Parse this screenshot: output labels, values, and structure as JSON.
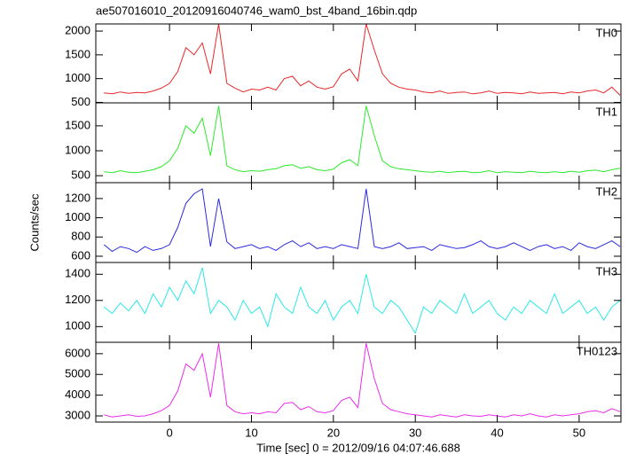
{
  "chart_data": {
    "type": "line",
    "title": "ae507016010_20120916040746_wam0_bst_4band_16bin.qdp",
    "x_label": "Time [sec] 0 = 2012/09/16 04:07:46.688",
    "y_label": "Counts/sec",
    "x": [
      -8,
      -7,
      -6,
      -5,
      -4,
      -3,
      -2,
      -1,
      0,
      1,
      2,
      3,
      4,
      5,
      6,
      7,
      8,
      9,
      10,
      11,
      12,
      13,
      14,
      15,
      16,
      17,
      18,
      19,
      20,
      21,
      22,
      23,
      24,
      25,
      26,
      27,
      28,
      29,
      30,
      31,
      32,
      33,
      34,
      35,
      36,
      37,
      38,
      39,
      40,
      41,
      42,
      43,
      44,
      45,
      46,
      47,
      48,
      49,
      50,
      51,
      52,
      53,
      54,
      55
    ],
    "xlim": [
      -9,
      55.1
    ],
    "xticks": [
      0,
      10,
      20,
      30,
      40,
      50
    ],
    "panels": [
      {
        "ylim": [
          490,
          2150
        ],
        "yticks": [
          500,
          1000,
          1500,
          2000
        ],
        "series": [
          {
            "name": "TH0",
            "color": "#e8282a",
            "values": [
              700,
              680,
              720,
              690,
              710,
              700,
              740,
              800,
              900,
              1150,
              1650,
              1500,
              1750,
              1100,
              2150,
              900,
              800,
              720,
              780,
              760,
              820,
              760,
              1000,
              1050,
              850,
              950,
              820,
              780,
              830,
              1100,
              1200,
              950,
              2150,
              1600,
              1100,
              900,
              820,
              780,
              760,
              720,
              700,
              740,
              690,
              710,
              720,
              680,
              700,
              740,
              690,
              710,
              700,
              680,
              720,
              690,
              700,
              710,
              680,
              720,
              700,
              740,
              760,
              700,
              820,
              650
            ]
          }
        ]
      },
      {
        "ylim": [
          360,
          1960
        ],
        "yticks": [
          500,
          1000,
          1500
        ],
        "series": [
          {
            "name": "TH1",
            "color": "#2ee82e",
            "values": [
              580,
              560,
              600,
              570,
              560,
              590,
              620,
              680,
              800,
              1050,
              1500,
              1350,
              1650,
              900,
              1900,
              700,
              620,
              580,
              600,
              590,
              620,
              640,
              700,
              720,
              650,
              680,
              620,
              600,
              630,
              760,
              820,
              700,
              1900,
              1300,
              800,
              680,
              640,
              620,
              600,
              580,
              570,
              590,
              560,
              580,
              590,
              560,
              570,
              600,
              560,
              580,
              570,
              560,
              590,
              570,
              560,
              580,
              560,
              590,
              570,
              600,
              610,
              580,
              620,
              650
            ]
          }
        ]
      },
      {
        "ylim": [
          535,
          1365
        ],
        "yticks": [
          600,
          800,
          1000,
          1200
        ],
        "series": [
          {
            "name": "TH2",
            "color": "#2a2ae0",
            "values": [
              720,
              650,
              700,
              680,
              640,
              700,
              660,
              680,
              720,
              900,
              1150,
              1250,
              1300,
              700,
              1200,
              750,
              680,
              700,
              720,
              680,
              700,
              660,
              720,
              760,
              700,
              740,
              680,
              700,
              680,
              720,
              700,
              680,
              1300,
              700,
              680,
              700,
              740,
              680,
              690,
              700,
              660,
              720,
              700,
              680,
              690,
              720,
              760,
              700,
              680,
              700,
              740,
              700,
              660,
              700,
              720,
              680,
              700,
              660,
              740,
              700,
              680,
              720,
              760,
              700
            ]
          }
        ]
      },
      {
        "ylim": [
          880,
          1490
        ],
        "yticks": [
          1000,
          1200,
          1400
        ],
        "series": [
          {
            "name": "TH3",
            "color": "#2ee8e8",
            "values": [
              1150,
              1100,
              1180,
              1120,
              1200,
              1100,
              1250,
              1150,
              1300,
              1200,
              1350,
              1250,
              1450,
              1100,
              1200,
              1150,
              1050,
              1200,
              1100,
              1150,
              1000,
              1250,
              1150,
              1100,
              1300,
              1150,
              1100,
              1200,
              1050,
              1150,
              1200,
              1100,
              1400,
              1150,
              1100,
              1200,
              1150,
              1050,
              950,
              1150,
              1100,
              1200,
              1150,
              1100,
              1250,
              1100,
              1150,
              1200,
              1100,
              1050,
              1150,
              1100,
              1200,
              1150,
              1100,
              1250,
              1100,
              1150,
              1200,
              1100,
              1150,
              1050,
              1150,
              1200
            ]
          }
        ]
      },
      {
        "ylim": [
          2700,
          6550
        ],
        "yticks": [
          3000,
          4000,
          5000,
          6000
        ],
        "series": [
          {
            "name": "TH0123",
            "color": "#e82ee8",
            "values": [
              3050,
              2950,
              3000,
              3050,
              2980,
              3000,
              3100,
              3250,
              3500,
              4200,
              5500,
              5200,
              6000,
              3900,
              6500,
              3500,
              3200,
              3100,
              3150,
              3100,
              3200,
              3150,
              3600,
              3650,
              3300,
              3450,
              3200,
              3150,
              3250,
              3750,
              3900,
              3400,
              6500,
              4800,
              3600,
              3300,
              3200,
              3100,
              3050,
              3000,
              2950,
              3050,
              3000,
              2950,
              3050,
              3000,
              2980,
              3050,
              3000,
              2950,
              3050,
              3000,
              3100,
              3000,
              2950,
              3050,
              3000,
              3050,
              3100,
              3200,
              3250,
              3150,
              3350,
              3200
            ]
          }
        ]
      }
    ]
  }
}
